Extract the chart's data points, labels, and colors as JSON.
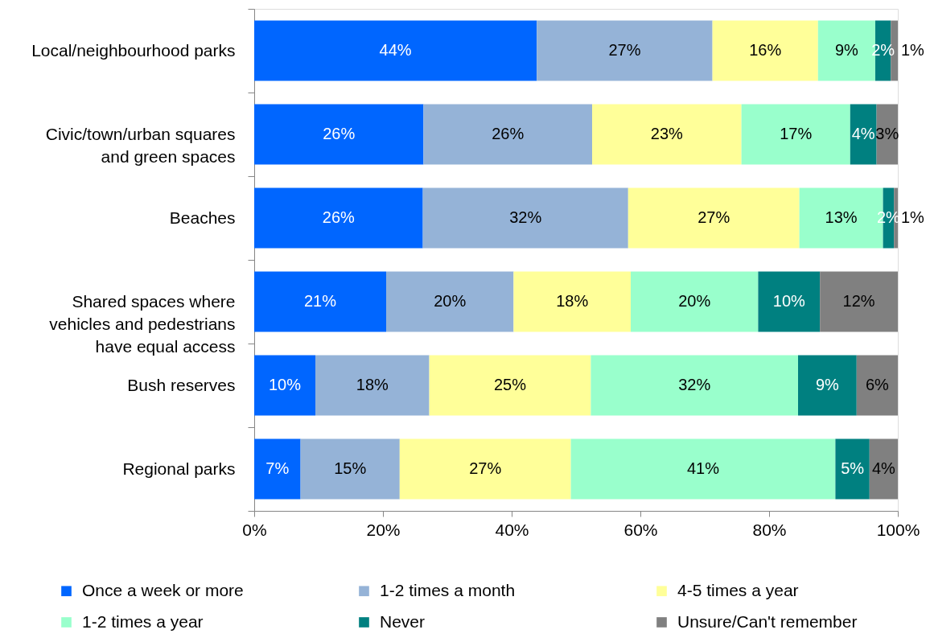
{
  "chart_data": {
    "type": "bar",
    "orientation": "horizontal",
    "stacked": true,
    "categories": [
      "Local/neighbourhood parks",
      "Civic/town/urban squares and green spaces",
      "Beaches",
      "Shared spaces where vehicles and pedestrians have equal access",
      "Bush reserves",
      "Regional parks"
    ],
    "series": [
      {
        "name": "Once a week or more",
        "color": "#0066ff",
        "values": [
          43.9,
          26.3,
          26.2,
          20.5,
          9.5,
          7.2
        ],
        "value_labels": [
          "44%",
          "26%",
          "26%",
          "21%",
          "10%",
          "7%"
        ]
      },
      {
        "name": "1-2 times a month",
        "color": "#95b3d7",
        "values": [
          27.3,
          26.2,
          31.9,
          19.8,
          17.7,
          15.4
        ],
        "value_labels": [
          "27%",
          "26%",
          "32%",
          "20%",
          "18%",
          "15%"
        ]
      },
      {
        "name": "4-5 times a year",
        "color": "#ffff99",
        "values": [
          16.4,
          23.2,
          26.6,
          18.2,
          25.1,
          26.6
        ],
        "value_labels": [
          "16%",
          "23%",
          "27%",
          "18%",
          "25%",
          "27%"
        ]
      },
      {
        "name": "1-2 times a year",
        "color": "#99ffcc",
        "values": [
          8.9,
          16.9,
          13.0,
          19.8,
          32.2,
          41.1
        ],
        "value_labels": [
          "9%",
          "17%",
          "13%",
          "20%",
          "32%",
          "41%"
        ]
      },
      {
        "name": "Never",
        "color": "#008080",
        "values": [
          2.4,
          4.1,
          1.7,
          9.6,
          9.1,
          5.3
        ],
        "value_labels": [
          "2%",
          "4%",
          "2%",
          "10%",
          "9%",
          "5%"
        ]
      },
      {
        "name": "Unsure/Can't remember",
        "color": "#808080",
        "values": [
          1.1,
          3.3,
          0.6,
          12.1,
          6.4,
          4.4
        ],
        "value_labels": [
          "1%",
          "3%",
          "1%",
          "12%",
          "6%",
          "4%"
        ]
      }
    ],
    "xlim": [
      0,
      100
    ],
    "xticks": [
      {
        "value": 0,
        "label": "0%"
      },
      {
        "value": 20,
        "label": "20%"
      },
      {
        "value": 40,
        "label": "40%"
      },
      {
        "value": 60,
        "label": "60%"
      },
      {
        "value": 80,
        "label": "80%"
      },
      {
        "value": 100,
        "label": "100%"
      }
    ],
    "grid": false,
    "legend": "bottom"
  }
}
